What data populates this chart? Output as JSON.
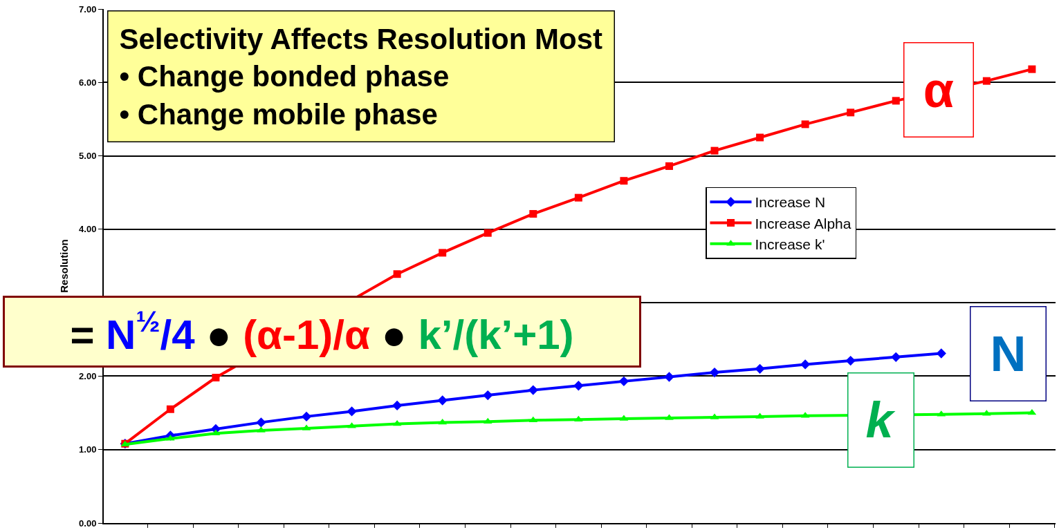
{
  "chart_data": {
    "type": "line",
    "ylabel": "Resolution",
    "categories": [
      null,
      null,
      null,
      null,
      null,
      null,
      null,
      null,
      null,
      null,
      null,
      null,
      null,
      null,
      null,
      null,
      null,
      null,
      null,
      null,
      null
    ],
    "series": [
      {
        "name": "Increase N",
        "color": "#0000ff",
        "marker": "diamond",
        "values": [
          1.08,
          1.19,
          1.28,
          1.37,
          1.45,
          1.52,
          1.6,
          1.67,
          1.74,
          1.81,
          1.87,
          1.93,
          1.99,
          2.05,
          2.1,
          2.16,
          2.21,
          2.26,
          2.31,
          null,
          null
        ]
      },
      {
        "name": "Increase Alpha",
        "color": "#ff0000",
        "marker": "square",
        "values": [
          1.08,
          1.55,
          1.98,
          null,
          null,
          null,
          3.39,
          3.68,
          3.95,
          4.21,
          4.43,
          4.66,
          4.86,
          5.07,
          5.25,
          5.43,
          5.59,
          5.75,
          null,
          6.02,
          6.18
        ]
      },
      {
        "name": "Increase k'",
        "color": "#00ff00",
        "marker": "triangle",
        "values": [
          1.07,
          1.15,
          1.22,
          1.26,
          1.29,
          1.32,
          1.35,
          1.37,
          1.38,
          1.4,
          1.41,
          1.42,
          1.43,
          1.44,
          1.45,
          1.46,
          null,
          null,
          1.48,
          1.49,
          1.5
        ]
      }
    ],
    "ylim": [
      0,
      7
    ],
    "yticks": [
      {
        "value": 0,
        "label": "0.00"
      },
      {
        "value": 1,
        "label": "1.00"
      },
      {
        "value": 2,
        "label": "2.00"
      },
      {
        "value": 3,
        "label": null
      },
      {
        "value": 4,
        "label": "4.00"
      },
      {
        "value": 5,
        "label": "5.00"
      },
      {
        "value": 6,
        "label": "6.00"
      },
      {
        "value": 7,
        "label": "7.00"
      }
    ],
    "grid": "y",
    "legend": "right",
    "tick_labels": "y",
    "line_style": "solid",
    "annotations": [
      "Selectivity Affects Resolution Most",
      "• Change bonded phase",
      "• Change mobile phase",
      "=",
      "N$^{½}$/4",
      "●",
      "(α-1)/α",
      "●",
      "k’/(k’+1)",
      "α",
      "N",
      "k"
    ]
  }
}
